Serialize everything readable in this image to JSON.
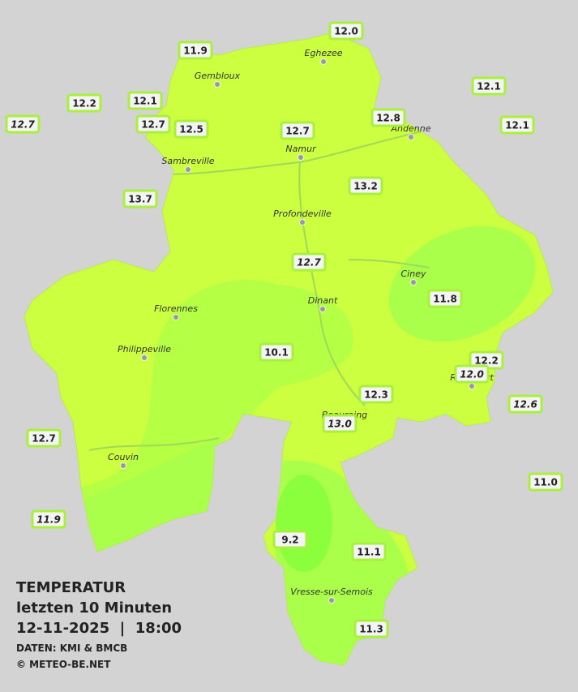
{
  "header": {
    "title": "TEMPERATUR",
    "subtitle": "letzten 10 Minuten",
    "datetime": "12-11-2025  |  18:00",
    "source": "DATEN: KMI & BMCB",
    "copyright": "© METEO-BE.NET"
  },
  "towns": [
    "Eghezee",
    "Gembloux",
    "Andenne",
    "Namur",
    "Sambreville",
    "Profondeville",
    "Ciney",
    "Dinant",
    "Florennes",
    "Philippeville",
    "Rochefort",
    "Beauraing",
    "Couvin",
    "Vresse-sur-Semois"
  ],
  "stations": [
    {
      "label": "11.9",
      "italic": false
    },
    {
      "label": "12.0",
      "italic": false
    },
    {
      "label": "12.1",
      "italic": false
    },
    {
      "label": "12.2",
      "italic": false
    },
    {
      "label": "12.1",
      "italic": false
    },
    {
      "label": "12.7",
      "italic": true
    },
    {
      "label": "12.7",
      "italic": false
    },
    {
      "label": "12.5",
      "italic": false
    },
    {
      "label": "12.7",
      "italic": false
    },
    {
      "label": "12.8",
      "italic": false
    },
    {
      "label": "12.1",
      "italic": false
    },
    {
      "label": "13.7",
      "italic": false
    },
    {
      "label": "13.2",
      "italic": false
    },
    {
      "label": "12.7",
      "italic": true
    },
    {
      "label": "11.8",
      "italic": false
    },
    {
      "label": "10.1",
      "italic": false
    },
    {
      "label": "12.2",
      "italic": false
    },
    {
      "label": "12.0",
      "italic": true
    },
    {
      "label": "12.3",
      "italic": false
    },
    {
      "label": "12.6",
      "italic": true
    },
    {
      "label": "13.0",
      "italic": true
    },
    {
      "label": "12.7",
      "italic": false
    },
    {
      "label": "11.0",
      "italic": false
    },
    {
      "label": "11.9",
      "italic": true
    },
    {
      "label": "9.2",
      "italic": false
    },
    {
      "label": "11.1",
      "italic": false
    },
    {
      "label": "11.3",
      "italic": false
    }
  ]
}
